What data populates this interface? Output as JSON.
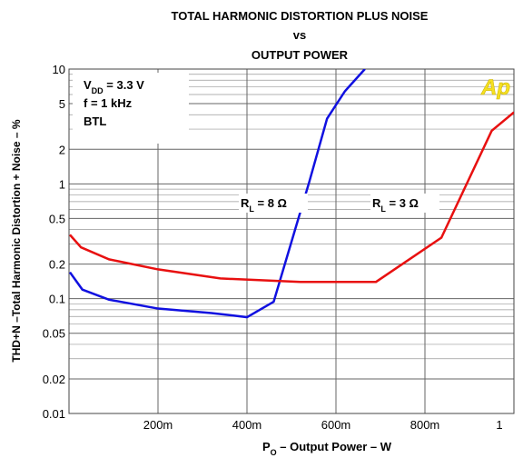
{
  "chart_data": {
    "type": "line",
    "title": [
      "TOTAL HARMONIC DISTORTION PLUS NOISE",
      "vs",
      "OUTPUT POWER"
    ],
    "y_label": "THD+N –Total Harmonic Distortion + Noise – %",
    "x_label": [
      "P",
      "O",
      " – Output Power – W"
    ],
    "conditions": [
      [
        "V",
        "DD",
        " = 3.3 V"
      ],
      [
        "f = 1 kHz"
      ],
      [
        "BTL"
      ]
    ],
    "logo": "Ap",
    "xlim": [
      0,
      1
    ],
    "xticks": [
      {
        "value": 0.2,
        "label": "200m"
      },
      {
        "value": 0.4,
        "label": "400m"
      },
      {
        "value": 0.6,
        "label": "600m"
      },
      {
        "value": 0.8,
        "label": "800m"
      },
      1
    ],
    "ylim": [
      0.01,
      10
    ],
    "yscale": "log",
    "yticks": [
      10,
      5,
      2,
      1,
      0.5,
      0.2,
      0.1,
      0.05,
      0.02,
      0.01
    ],
    "yticks_minor": [
      0.03,
      0.04,
      0.06,
      0.07,
      0.08,
      0.09,
      0.3,
      0.4,
      0.6,
      0.7,
      0.8,
      0.9,
      3,
      4,
      6,
      7,
      8,
      9
    ],
    "grid": true,
    "series": [
      {
        "label": [
          "R",
          "L",
          " = 8 Ω"
        ],
        "color": "#1010e0",
        "x": [
          0.002,
          0.03,
          0.09,
          0.2,
          0.32,
          0.4,
          0.46,
          0.54,
          0.58,
          0.62,
          0.665
        ],
        "values": [
          0.17,
          0.12,
          0.098,
          0.082,
          0.075,
          0.069,
          0.094,
          1.04,
          3.7,
          6.4,
          10
        ]
      },
      {
        "label": [
          "R",
          "L",
          " = 3 Ω"
        ],
        "color": "#e81010",
        "x": [
          0.002,
          0.027,
          0.09,
          0.2,
          0.34,
          0.52,
          0.69,
          0.837,
          0.95,
          1.0
        ],
        "values": [
          0.36,
          0.28,
          0.22,
          0.18,
          0.15,
          0.14,
          0.14,
          0.34,
          2.9,
          4.2
        ]
      }
    ]
  }
}
